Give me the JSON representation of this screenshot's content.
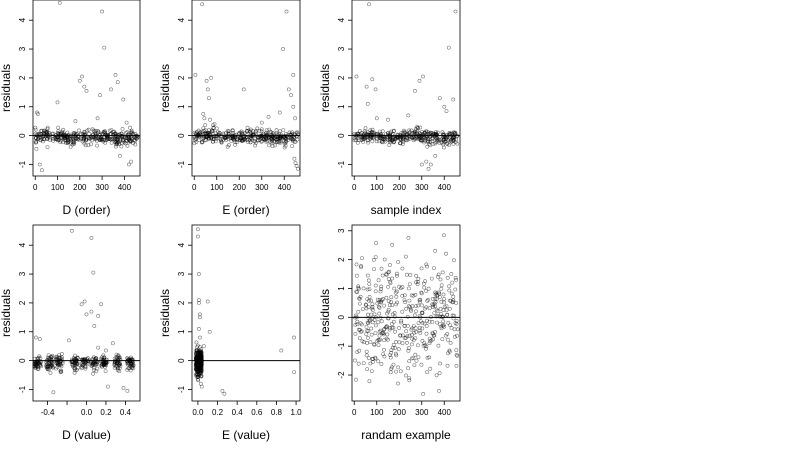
{
  "chart_data": [
    {
      "id": "D_order",
      "type": "scatter",
      "title": "",
      "xlabel": "D (order)",
      "ylabel": "residuals",
      "xlim": [
        -10,
        470
      ],
      "ylim": [
        -1.4,
        4.7
      ],
      "xticks": [
        0,
        100,
        200,
        300,
        400
      ],
      "xtick_labels": [
        "0",
        "100",
        "200",
        "300",
        "400"
      ],
      "yticks": [
        -1,
        0,
        1,
        2,
        3,
        4
      ],
      "ytick_labels": [
        "-1",
        "0",
        "1",
        "2",
        "3",
        "4"
      ],
      "hline": 0,
      "outliers": [
        [
          5,
          -0.2
        ],
        [
          8,
          0.8
        ],
        [
          12,
          0.75
        ],
        [
          20,
          -1.0
        ],
        [
          30,
          -1.2
        ],
        [
          55,
          -0.4
        ],
        [
          100,
          1.15
        ],
        [
          110,
          4.6
        ],
        [
          180,
          0.5
        ],
        [
          200,
          1.9
        ],
        [
          210,
          2.05
        ],
        [
          220,
          1.7
        ],
        [
          230,
          1.55
        ],
        [
          250,
          -0.3
        ],
        [
          280,
          0.6
        ],
        [
          290,
          1.4
        ],
        [
          310,
          3.05
        ],
        [
          300,
          4.3
        ],
        [
          340,
          1.6
        ],
        [
          360,
          2.1
        ],
        [
          370,
          1.85
        ],
        [
          380,
          -0.7
        ],
        [
          395,
          1.25
        ],
        [
          410,
          0.45
        ],
        [
          420,
          -1.0
        ],
        [
          430,
          -0.9
        ]
      ],
      "bulk": {
        "n": 380,
        "x_range": [
          0,
          460
        ],
        "y_center": -0.05,
        "y_spread": 0.12
      }
    },
    {
      "id": "E_order",
      "type": "scatter",
      "title": "",
      "xlabel": "E (order)",
      "ylabel": "residuals",
      "xlim": [
        -10,
        470
      ],
      "ylim": [
        -1.4,
        4.7
      ],
      "xticks": [
        0,
        100,
        200,
        300,
        400
      ],
      "xtick_labels": [
        "0",
        "100",
        "200",
        "300",
        "400"
      ],
      "yticks": [
        -1,
        0,
        1,
        2,
        3,
        4
      ],
      "ytick_labels": [
        "-1",
        "0",
        "1",
        "2",
        "3",
        "4"
      ],
      "hline": 0,
      "outliers": [
        [
          5,
          2.1
        ],
        [
          35,
          4.55
        ],
        [
          40,
          0.75
        ],
        [
          45,
          0.6
        ],
        [
          55,
          1.9
        ],
        [
          60,
          1.6
        ],
        [
          65,
          1.3
        ],
        [
          70,
          0.55
        ],
        [
          75,
          2.0
        ],
        [
          90,
          0.4
        ],
        [
          100,
          0.25
        ],
        [
          220,
          1.6
        ],
        [
          300,
          0.45
        ],
        [
          330,
          0.65
        ],
        [
          380,
          0.8
        ],
        [
          395,
          3.0
        ],
        [
          410,
          4.3
        ],
        [
          420,
          1.6
        ],
        [
          430,
          1.4
        ],
        [
          440,
          2.1
        ],
        [
          445,
          -0.8
        ],
        [
          450,
          -0.95
        ],
        [
          455,
          -1.05
        ],
        [
          460,
          -1.15
        ],
        [
          440,
          1.0
        ],
        [
          448,
          0.6
        ]
      ],
      "bulk": {
        "n": 380,
        "x_range": [
          0,
          460
        ],
        "y_center": -0.05,
        "y_spread": 0.12
      }
    },
    {
      "id": "sample_index",
      "type": "scatter",
      "title": "",
      "xlabel": "sample index",
      "ylabel": "residuals",
      "xlim": [
        -10,
        470
      ],
      "ylim": [
        -1.4,
        4.7
      ],
      "xticks": [
        0,
        100,
        200,
        300,
        400
      ],
      "xtick_labels": [
        "0",
        "100",
        "200",
        "300",
        "400"
      ],
      "yticks": [
        -1,
        0,
        1,
        2,
        3,
        4
      ],
      "ytick_labels": [
        "-1",
        "0",
        "1",
        "2",
        "3",
        "4"
      ],
      "hline": 0,
      "outliers": [
        [
          10,
          2.05
        ],
        [
          55,
          1.7
        ],
        [
          60,
          1.1
        ],
        [
          65,
          4.55
        ],
        [
          80,
          1.95
        ],
        [
          95,
          1.6
        ],
        [
          100,
          0.6
        ],
        [
          150,
          0.55
        ],
        [
          240,
          0.7
        ],
        [
          270,
          1.55
        ],
        [
          290,
          1.9
        ],
        [
          305,
          2.05
        ],
        [
          320,
          -0.9
        ],
        [
          340,
          -1.0
        ],
        [
          360,
          -0.7
        ],
        [
          380,
          1.3
        ],
        [
          400,
          1.0
        ],
        [
          410,
          0.85
        ],
        [
          420,
          3.05
        ],
        [
          440,
          1.25
        ],
        [
          450,
          4.3
        ],
        [
          300,
          -1.0
        ],
        [
          330,
          -1.15
        ]
      ],
      "bulk": {
        "n": 380,
        "x_range": [
          0,
          460
        ],
        "y_center": -0.05,
        "y_spread": 0.12
      }
    },
    {
      "id": "D_value",
      "type": "scatter",
      "title": "",
      "xlabel": "D (value)",
      "ylabel": "residuals",
      "xlim": [
        -0.55,
        0.55
      ],
      "ylim": [
        -1.4,
        4.7
      ],
      "xticks": [
        -0.4,
        -0.2,
        0.0,
        0.2,
        0.4
      ],
      "xtick_labels": [
        "-0.4",
        "",
        "0.0",
        "0.2",
        "0.4"
      ],
      "yticks": [
        -1,
        0,
        1,
        2,
        3,
        4
      ],
      "ytick_labels": [
        "-1",
        "0",
        "1",
        "2",
        "3",
        "4"
      ],
      "hline": 0,
      "outliers": [
        [
          -0.52,
          0.8
        ],
        [
          -0.48,
          0.75
        ],
        [
          -0.34,
          -1.1
        ],
        [
          -0.18,
          0.7
        ],
        [
          -0.15,
          4.5
        ],
        [
          -0.05,
          1.95
        ],
        [
          -0.02,
          2.05
        ],
        [
          0.0,
          1.6
        ],
        [
          0.05,
          1.7
        ],
        [
          0.08,
          1.2
        ],
        [
          0.05,
          4.25
        ],
        [
          0.07,
          3.05
        ],
        [
          0.12,
          1.55
        ],
        [
          0.15,
          1.95
        ],
        [
          0.2,
          0.35
        ],
        [
          0.22,
          -0.9
        ],
        [
          0.38,
          -0.95
        ],
        [
          0.42,
          -1.05
        ],
        [
          0.27,
          0.6
        ],
        [
          0.12,
          0.45
        ]
      ],
      "clusters": [
        -0.5,
        -0.38,
        -0.28,
        -0.12,
        -0.02,
        0.08,
        0.18,
        0.32,
        0.45
      ],
      "bulk": {
        "n": 380,
        "y_center": -0.08,
        "y_spread": 0.12
      }
    },
    {
      "id": "E_value",
      "type": "scatter",
      "title": "",
      "xlabel": "E (value)",
      "ylabel": "residuals",
      "xlim": [
        -0.06,
        1.04
      ],
      "ylim": [
        -1.4,
        4.7
      ],
      "xticks": [
        0.0,
        0.2,
        0.4,
        0.6,
        0.8,
        1.0
      ],
      "xtick_labels": [
        "0.0",
        "0.2",
        "0.4",
        "0.6",
        "0.8",
        "1.0"
      ],
      "yticks": [
        -1,
        0,
        1,
        2,
        3,
        4
      ],
      "ytick_labels": [
        "-1",
        "0",
        "1",
        "2",
        "3",
        "4"
      ],
      "hline": 0,
      "outliers": [
        [
          0.0,
          4.55
        ],
        [
          0.0,
          4.3
        ],
        [
          0.01,
          3.0
        ],
        [
          0.01,
          2.1
        ],
        [
          0.01,
          2.0
        ],
        [
          0.02,
          1.6
        ],
        [
          0.02,
          1.5
        ],
        [
          0.01,
          1.1
        ],
        [
          0.1,
          2.05
        ],
        [
          0.12,
          1.0
        ],
        [
          0.02,
          0.8
        ],
        [
          0.04,
          -0.9
        ],
        [
          0.03,
          -0.8
        ],
        [
          0.25,
          -1.05
        ],
        [
          0.27,
          -1.15
        ],
        [
          0.85,
          0.35
        ],
        [
          0.98,
          0.8
        ],
        [
          0.98,
          -0.4
        ],
        [
          0.06,
          0.5
        ]
      ],
      "bulk": {
        "n": 360,
        "x_range": [
          -0.02,
          0.04
        ],
        "y_center": -0.05,
        "y_spread": 0.2
      }
    },
    {
      "id": "random_example",
      "type": "scatter",
      "title": "",
      "xlabel": "randam example",
      "ylabel": "residuals",
      "xlim": [
        -10,
        470
      ],
      "ylim": [
        -2.9,
        3.2
      ],
      "xticks": [
        0,
        100,
        200,
        300,
        400
      ],
      "xtick_labels": [
        "0",
        "100",
        "200",
        "300",
        "400"
      ],
      "yticks": [
        -2,
        -1,
        0,
        1,
        2,
        3
      ],
      "ytick_labels": [
        "-2",
        "-1",
        "0",
        "1",
        "2",
        "3"
      ],
      "hline": 0,
      "outliers": [],
      "bulk": {
        "n": 450,
        "x_range": [
          0,
          460
        ],
        "y_center": 0,
        "y_spread": 1.0,
        "normal": true
      }
    }
  ]
}
